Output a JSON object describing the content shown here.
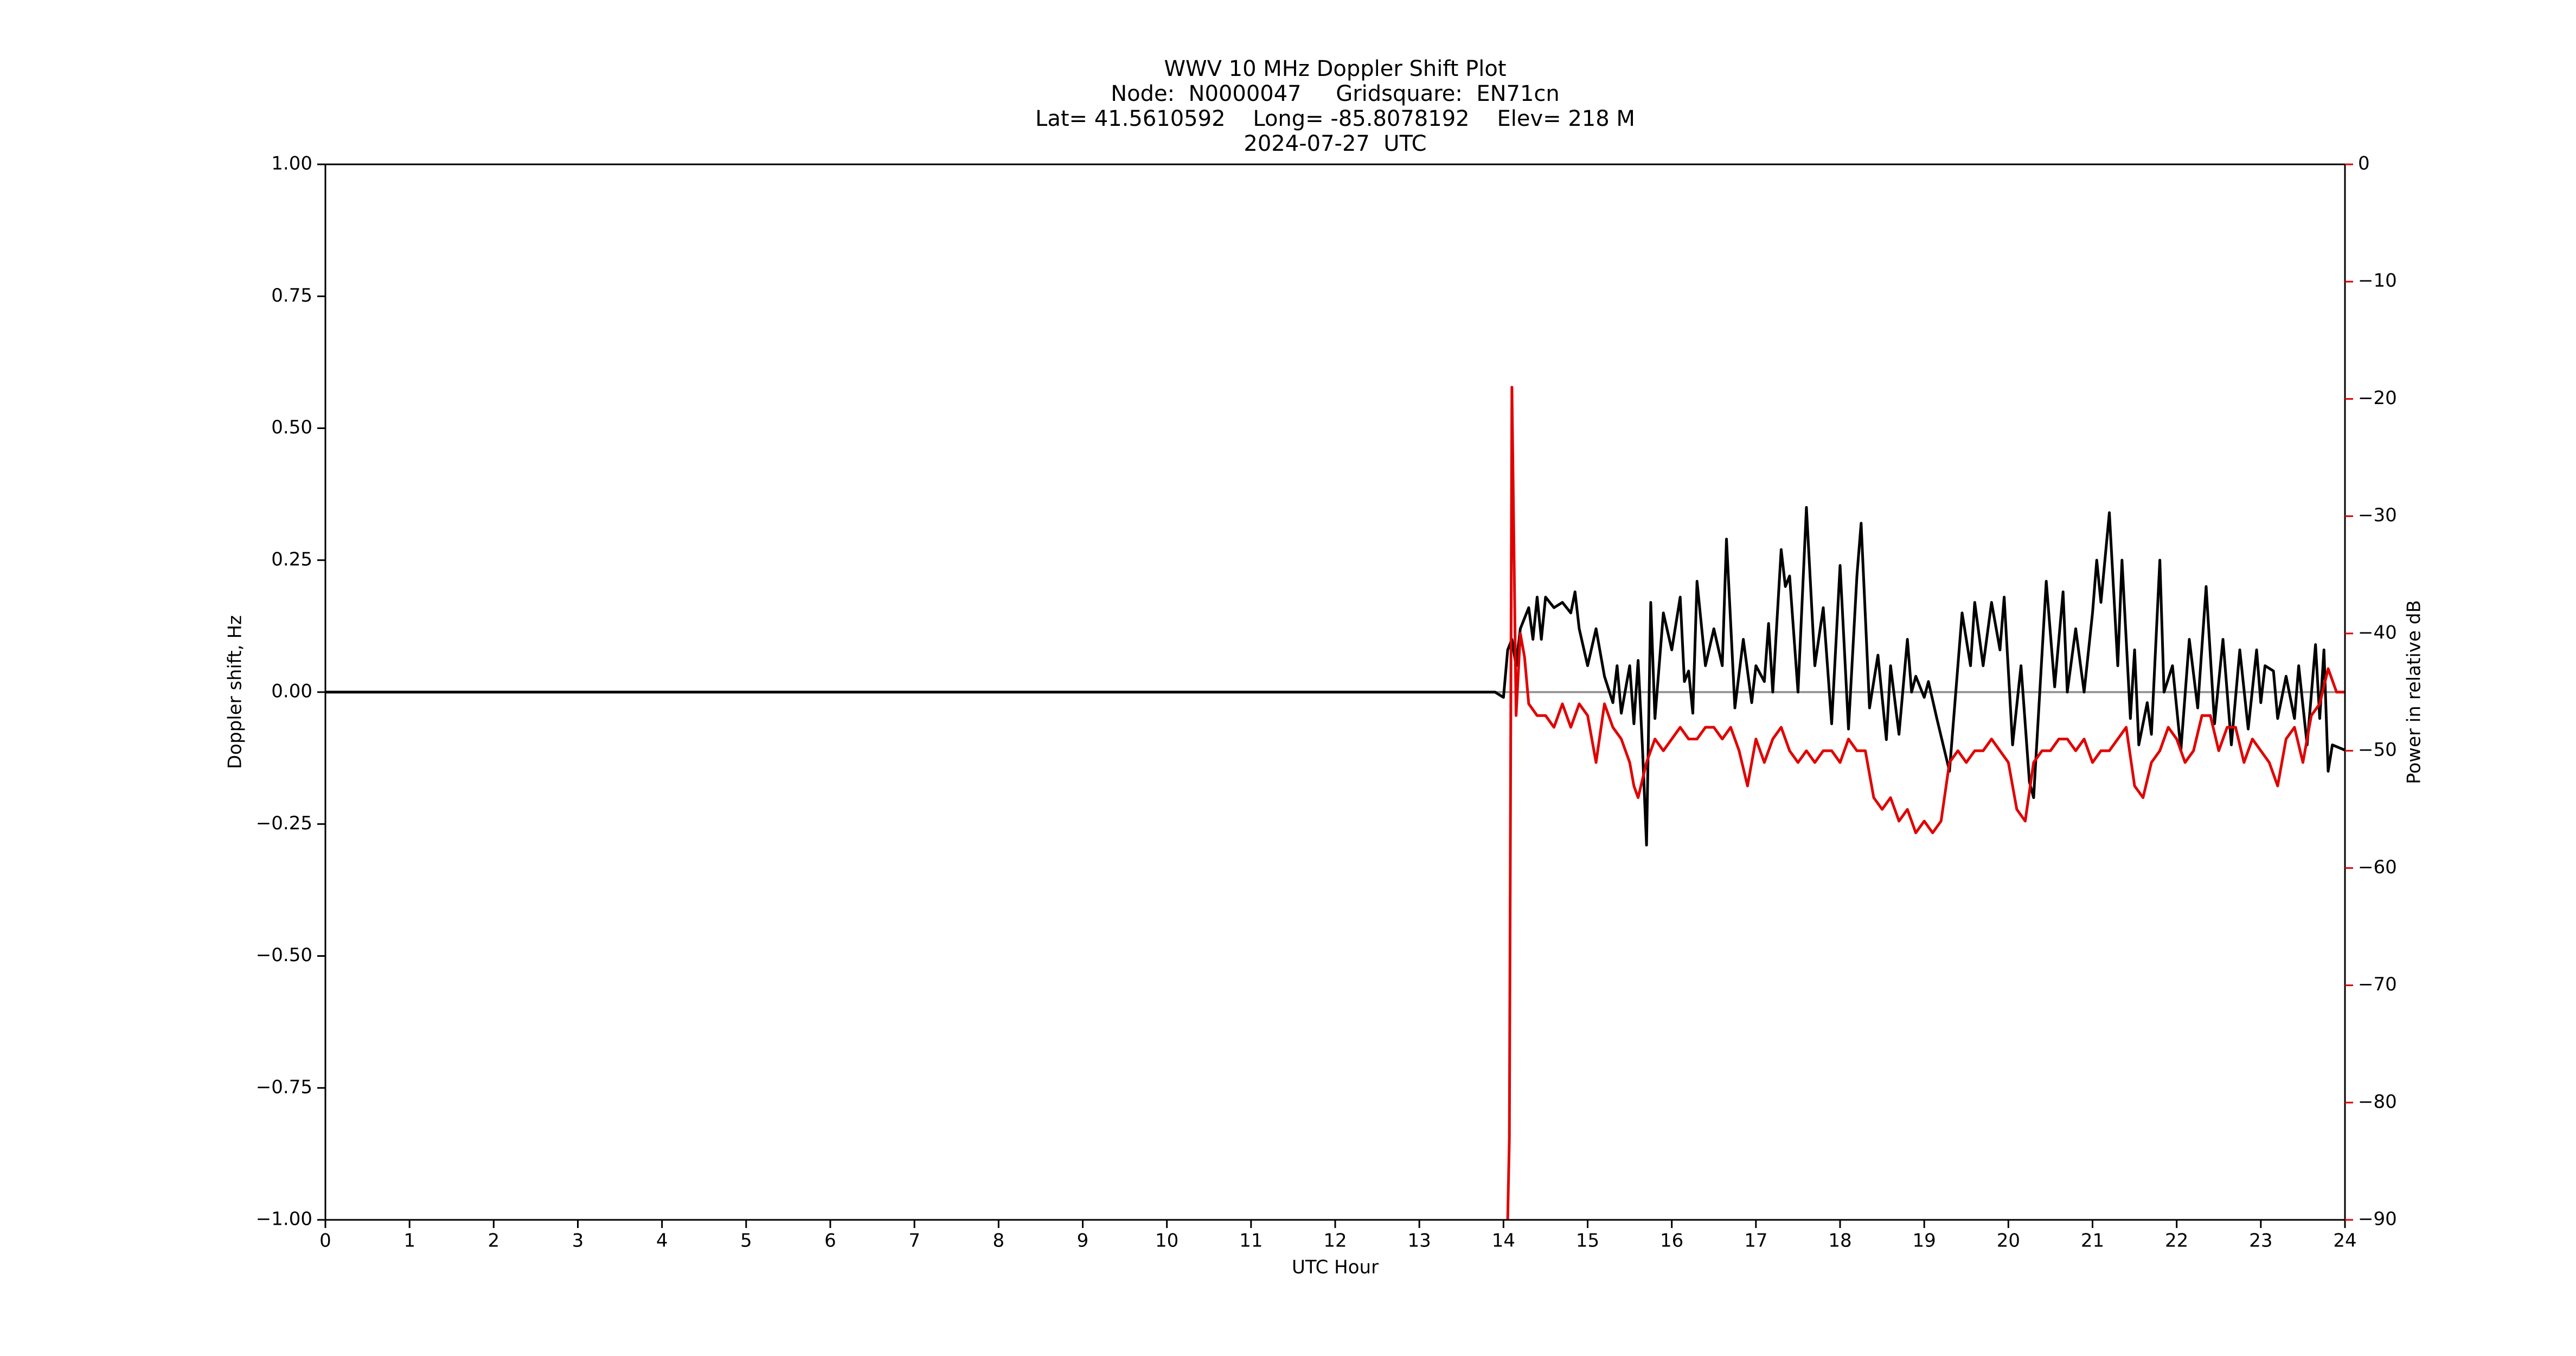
{
  "chart_data": {
    "type": "line",
    "title": [
      "WWV 10 MHz Doppler Shift Plot",
      "Node:  N0000047     Gridsquare:  EN71cn",
      "Lat= 41.5610592    Long= -85.8078192    Elev= 218 M",
      "2024-07-27  UTC"
    ],
    "xlabel": "UTC Hour",
    "ylabel": "Doppler shift, Hz",
    "y2label": "Power in relative dB",
    "xlim": [
      0,
      24
    ],
    "xticks": [
      0,
      1,
      2,
      3,
      4,
      5,
      6,
      7,
      8,
      9,
      10,
      11,
      12,
      13,
      14,
      15,
      16,
      17,
      18,
      19,
      20,
      21,
      22,
      23,
      24
    ],
    "ylim": [
      -1,
      1
    ],
    "yticks": [
      {
        "value": 1,
        "label": "1.00"
      },
      {
        "value": 0.75,
        "label": "0.75"
      },
      {
        "value": 0.5,
        "label": "0.50"
      },
      {
        "value": 0.25,
        "label": "0.25"
      },
      {
        "value": 0,
        "label": "0.00"
      },
      {
        "value": -0.25,
        "label": "−0.25"
      },
      {
        "value": -0.5,
        "label": "−0.50"
      },
      {
        "value": -0.75,
        "label": "−0.75"
      },
      {
        "value": -1,
        "label": "−1.00"
      }
    ],
    "y2lim": [
      -90,
      0
    ],
    "y2ticks": [
      0,
      {
        "value": -10,
        "label": "−10"
      },
      {
        "value": -20,
        "label": "−20"
      },
      {
        "value": -30,
        "label": "−30"
      },
      {
        "value": -40,
        "label": "−40"
      },
      {
        "value": -50,
        "label": "−50"
      },
      {
        "value": -60,
        "label": "−60"
      },
      {
        "value": -70,
        "label": "−70"
      },
      {
        "value": -80,
        "label": "−80"
      },
      {
        "value": -90,
        "label": "−90"
      }
    ],
    "y2color": "#e00000",
    "reference_line": {
      "value": 0,
      "color": "#999999"
    },
    "series": [
      {
        "color": "#000000",
        "axis": "y",
        "x": [
          0,
          13.8,
          13.9,
          14.0,
          14.05,
          14.1,
          14.15,
          14.2,
          14.3,
          14.35,
          14.4,
          14.45,
          14.5,
          14.6,
          14.7,
          14.8,
          14.85,
          14.9,
          15.0,
          15.1,
          15.2,
          15.3,
          15.35,
          15.4,
          15.5,
          15.55,
          15.6,
          15.65,
          15.7,
          15.75,
          15.8,
          15.85,
          15.9,
          16.0,
          16.1,
          16.15,
          16.2,
          16.25,
          16.3,
          16.4,
          16.5,
          16.6,
          16.65,
          16.75,
          16.85,
          16.95,
          17.0,
          17.1,
          17.15,
          17.2,
          17.3,
          17.35,
          17.4,
          17.5,
          17.6,
          17.7,
          17.8,
          17.9,
          18.0,
          18.1,
          18.2,
          18.25,
          18.35,
          18.45,
          18.55,
          18.6,
          18.7,
          18.8,
          18.85,
          18.9,
          19.0,
          19.05,
          19.15,
          19.3,
          19.45,
          19.55,
          19.6,
          19.7,
          19.8,
          19.9,
          19.95,
          20.05,
          20.15,
          20.25,
          20.3,
          20.45,
          20.55,
          20.65,
          20.7,
          20.8,
          20.9,
          21.0,
          21.05,
          21.1,
          21.2,
          21.3,
          21.35,
          21.45,
          21.5,
          21.55,
          21.65,
          21.7,
          21.8,
          21.85,
          21.95,
          22.05,
          22.15,
          22.25,
          22.35,
          22.45,
          22.55,
          22.65,
          22.75,
          22.85,
          22.95,
          23.0,
          23.05,
          23.15,
          23.2,
          23.3,
          23.4,
          23.45,
          23.55,
          23.65,
          23.7,
          23.75,
          23.8,
          23.85,
          24.0
        ],
        "values": [
          0,
          0,
          0,
          -0.01,
          0.08,
          0.1,
          0.05,
          0.12,
          0.16,
          0.1,
          0.18,
          0.1,
          0.18,
          0.16,
          0.17,
          0.15,
          0.19,
          0.12,
          0.05,
          0.12,
          0.03,
          -0.02,
          0.05,
          -0.04,
          0.05,
          -0.06,
          0.06,
          -0.1,
          -0.29,
          0.17,
          -0.05,
          0.05,
          0.15,
          0.08,
          0.18,
          0.02,
          0.04,
          -0.04,
          0.21,
          0.05,
          0.12,
          0.05,
          0.29,
          -0.03,
          0.1,
          -0.02,
          0.05,
          0.02,
          0.13,
          0.0,
          0.27,
          0.2,
          0.22,
          0.0,
          0.35,
          0.05,
          0.16,
          -0.06,
          0.24,
          -0.07,
          0.22,
          0.32,
          -0.03,
          0.07,
          -0.09,
          0.05,
          -0.08,
          0.1,
          0.0,
          0.03,
          -0.01,
          0.02,
          -0.05,
          -0.15,
          0.15,
          0.05,
          0.17,
          0.05,
          0.17,
          0.08,
          0.18,
          -0.1,
          0.05,
          -0.17,
          -0.2,
          0.21,
          0.01,
          0.19,
          0.0,
          0.12,
          0.0,
          0.15,
          0.25,
          0.17,
          0.34,
          0.05,
          0.25,
          -0.05,
          0.08,
          -0.1,
          -0.02,
          -0.08,
          0.25,
          0.0,
          0.05,
          -0.11,
          0.1,
          -0.03,
          0.2,
          -0.06,
          0.1,
          -0.1,
          0.08,
          -0.07,
          0.08,
          -0.02,
          0.05,
          0.04,
          -0.05,
          0.03,
          -0.05,
          0.05,
          -0.1,
          0.09,
          -0.05,
          0.08,
          -0.15,
          -0.1,
          -0.11
        ]
      },
      {
        "color": "#e00000",
        "axis": "y2",
        "x": [
          14.05,
          14.07,
          14.1,
          14.15,
          14.2,
          14.25,
          14.3,
          14.4,
          14.5,
          14.6,
          14.7,
          14.8,
          14.9,
          15.0,
          15.1,
          15.2,
          15.3,
          15.4,
          15.5,
          15.55,
          15.6,
          15.7,
          15.8,
          15.9,
          16.0,
          16.1,
          16.2,
          16.3,
          16.4,
          16.5,
          16.6,
          16.7,
          16.8,
          16.9,
          17.0,
          17.1,
          17.2,
          17.3,
          17.4,
          17.5,
          17.6,
          17.7,
          17.8,
          17.9,
          18.0,
          18.1,
          18.2,
          18.3,
          18.4,
          18.5,
          18.6,
          18.7,
          18.8,
          18.9,
          19.0,
          19.1,
          19.2,
          19.3,
          19.4,
          19.5,
          19.6,
          19.7,
          19.8,
          19.9,
          20.0,
          20.1,
          20.2,
          20.3,
          20.4,
          20.5,
          20.6,
          20.7,
          20.8,
          20.9,
          21.0,
          21.1,
          21.2,
          21.3,
          21.4,
          21.5,
          21.6,
          21.7,
          21.8,
          21.9,
          22.0,
          22.1,
          22.2,
          22.3,
          22.4,
          22.5,
          22.6,
          22.7,
          22.8,
          22.9,
          23.0,
          23.1,
          23.2,
          23.3,
          23.4,
          23.5,
          23.6,
          23.7,
          23.8,
          23.9,
          24.0
        ],
        "values": [
          -90,
          -83,
          -19,
          -47,
          -40,
          -42,
          -46,
          -47,
          -47,
          -48,
          -46,
          -48,
          -46,
          -47,
          -51,
          -46,
          -48,
          -49,
          -51,
          -53,
          -54,
          -51,
          -49,
          -50,
          -49,
          -48,
          -49,
          -49,
          -48,
          -48,
          -49,
          -48,
          -50,
          -53,
          -49,
          -51,
          -49,
          -48,
          -50,
          -51,
          -50,
          -51,
          -50,
          -50,
          -51,
          -49,
          -50,
          -50,
          -54,
          -55,
          -54,
          -56,
          -55,
          -57,
          -56,
          -57,
          -56,
          -51,
          -50,
          -51,
          -50,
          -50,
          -49,
          -50,
          -51,
          -55,
          -56,
          -51,
          -50,
          -50,
          -49,
          -49,
          -50,
          -49,
          -51,
          -50,
          -50,
          -49,
          -48,
          -53,
          -54,
          -51,
          -50,
          -48,
          -49,
          -51,
          -50,
          -47,
          -47,
          -50,
          -48,
          -48,
          -51,
          -49,
          -50,
          -51,
          -53,
          -49,
          -48,
          -51,
          -47,
          -46,
          -43,
          -45,
          -45
        ]
      }
    ]
  }
}
